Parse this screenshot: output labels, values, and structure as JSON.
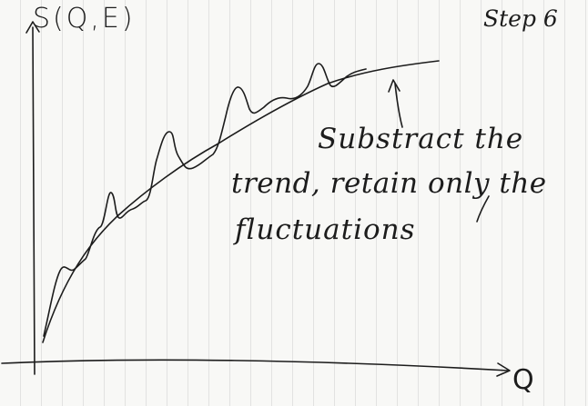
{
  "axes": {
    "y_label": "S(Q,E)",
    "x_label": "Q"
  },
  "step_label": "Step 6",
  "annotation": {
    "line1": "Substract the",
    "line2": "trend, retain only the",
    "line3": "fluctuations"
  },
  "colors": {
    "ink": "#1c1c1c",
    "paper": "#f8f8f6",
    "grid": "#c8c8c8"
  }
}
